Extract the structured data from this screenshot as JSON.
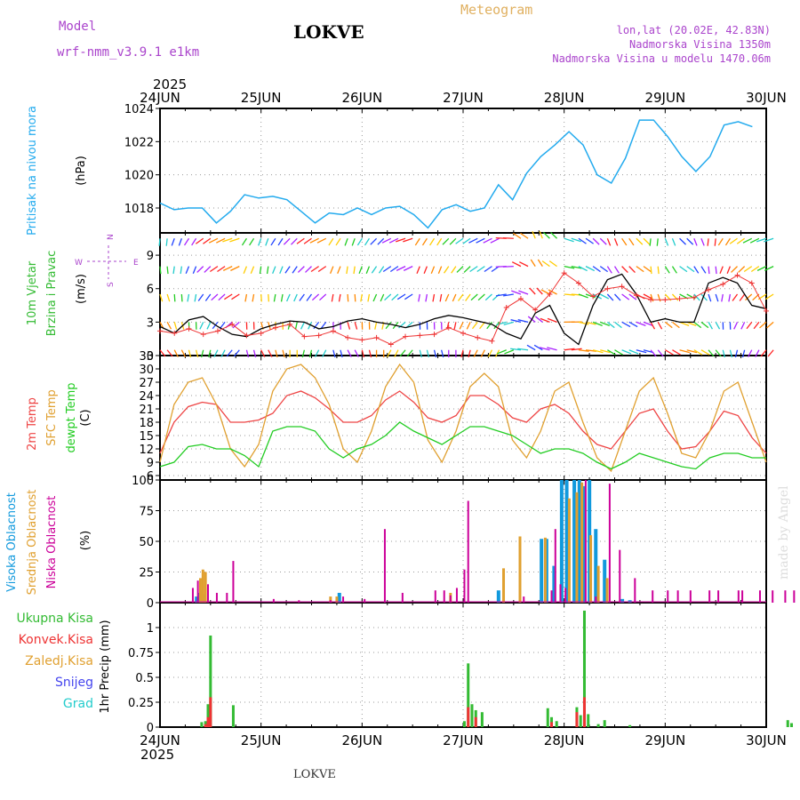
{
  "header": {
    "model_label": "Model",
    "model_name": "wrf-nmm_v3.9.1 e1km",
    "station": "LOKVE",
    "product": "Meteogram",
    "lonlat": "lon,lat (20.02E, 42.83N)",
    "altitude": "Nadmorska Visina 1350m",
    "model_altitude": "Nadmorska Visina u modelu 1470.06m"
  },
  "footer": {
    "station": "LOKVE",
    "credit": "made by Angel"
  },
  "colors": {
    "pressure": "#22aaee",
    "speed": "#000000",
    "gust": "#ee3333",
    "temp2m": "#ee4444",
    "sfc": "#e0a030",
    "dew": "#22cc22",
    "high_cloud": "#1199dd",
    "mid_cloud": "#e0a030",
    "low_cloud": "#cc0099",
    "rain_total": "#33bb33",
    "rain_conv": "#ee3333",
    "snow": "#4444ee",
    "grad": "#22cccc",
    "magenta": "#aa44cc"
  },
  "chart_data": [
    {
      "type": "line",
      "id": "pressure",
      "ylabel_left": "Pritisak na nivou mora",
      "unit": "(hPa)",
      "ylim": [
        1016.5,
        1024
      ],
      "yticks": [
        1018,
        1020,
        1022,
        1024
      ],
      "x_start": "2025-06-24T00",
      "x_step_hours": 3,
      "x_ticks": [
        "24JUN",
        "25JUN",
        "26JUN",
        "27JUN",
        "28JUN",
        "29JUN",
        "30JUN"
      ],
      "year": "2025",
      "grid": true,
      "series": [
        {
          "key": "slp",
          "values": [
            1018.3,
            1017.9,
            1018.0,
            1018.0,
            1017.1,
            1017.8,
            1018.8,
            1018.6,
            1018.7,
            1018.5,
            1017.8,
            1017.1,
            1017.7,
            1017.6,
            1018.0,
            1017.6,
            1018.0,
            1018.1,
            1017.6,
            1016.8,
            1017.9,
            1018.2,
            1017.8,
            1018.0,
            1019.4,
            1018.5,
            1020.1,
            1021.1,
            1021.8,
            1022.6,
            1021.8,
            1020.0,
            1019.5,
            1021.0,
            1023.3,
            1023.3,
            1022.3,
            1021.1,
            1020.2,
            1021.1,
            1023.0,
            1023.2,
            1022.9
          ]
        }
      ]
    },
    {
      "type": "line",
      "id": "wind",
      "ylabel_left": [
        "10m Vjetar",
        "Brzina i Pravac"
      ],
      "unit": "(m/s)",
      "compass": {
        "n": "N",
        "e": "E",
        "w": "W",
        "s": "S"
      },
      "ylim": [
        0,
        11
      ],
      "yticks": [
        0,
        3,
        6,
        9
      ],
      "x_start": "2025-06-24T00",
      "x_step_hours": 3,
      "grid": true,
      "series": [
        {
          "key": "speed",
          "values": [
            2.6,
            2.0,
            3.2,
            3.5,
            2.6,
            1.9,
            1.7,
            2.4,
            2.8,
            3.1,
            3.0,
            2.4,
            2.6,
            3.1,
            3.3,
            3.0,
            2.8,
            2.5,
            2.8,
            3.3,
            3.6,
            3.4,
            3.1,
            2.8,
            2.0,
            1.5,
            3.8,
            4.5,
            2.0,
            1.0,
            4.5,
            6.8,
            7.3,
            5.5,
            3.0,
            3.3,
            3.0,
            3.0,
            6.5,
            7.0,
            6.5,
            4.5,
            4.2
          ]
        },
        {
          "key": "gust",
          "values": [
            2.2,
            2.0,
            2.4,
            1.9,
            2.2,
            2.8,
            1.8,
            2.0,
            2.5,
            2.8,
            1.7,
            1.8,
            2.2,
            1.6,
            1.4,
            1.6,
            1.0,
            1.7,
            1.8,
            1.9,
            2.5,
            2.0,
            1.6,
            1.3,
            4.3,
            5.1,
            4.1,
            5.5,
            7.4,
            6.5,
            5.3,
            6.0,
            6.2,
            5.4,
            5.0,
            5.0,
            5.1,
            5.2,
            5.9,
            6.4,
            7.2,
            6.5,
            4.0
          ]
        },
        {
          "key": "dir",
          "values": [
            60,
            70,
            80,
            100,
            110,
            120,
            80,
            70,
            80,
            90,
            100,
            110,
            80,
            70,
            80,
            90,
            110,
            120,
            80,
            80,
            90,
            100,
            110,
            110,
            150,
            190,
            220,
            200,
            350,
            10,
            20,
            40,
            30,
            20,
            60,
            40,
            20,
            40,
            60,
            80,
            100,
            110,
            120
          ]
        }
      ]
    },
    {
      "type": "line",
      "id": "temperature",
      "ylabel_left": [
        "2m Temp",
        "SFC Temp",
        "dewpt Temp"
      ],
      "unit": "(C)",
      "ylim": [
        5,
        33
      ],
      "yticks": [
        6,
        9,
        12,
        15,
        18,
        21,
        24,
        27,
        30,
        33
      ],
      "x_start": "2025-06-24T00",
      "x_step_hours": 3,
      "grid": true,
      "series": [
        {
          "key": "t2m",
          "values": [
            11,
            18,
            21.5,
            22.5,
            22,
            18,
            18,
            18.5,
            20,
            24,
            25,
            23.5,
            21,
            18,
            18,
            19.5,
            23,
            25,
            22.5,
            19,
            18,
            19.5,
            24,
            24,
            22,
            19,
            18,
            21,
            22,
            20,
            16,
            13,
            12,
            16,
            20,
            21,
            16,
            12,
            12.5,
            16,
            20.5,
            19.5,
            14.5,
            11
          ]
        },
        {
          "key": "sfc",
          "values": [
            9,
            22,
            27,
            28,
            22,
            12,
            8,
            13,
            25,
            30,
            31,
            28,
            22,
            12,
            9,
            16,
            26,
            31,
            27,
            14,
            9,
            16,
            26,
            29,
            26,
            14,
            10,
            16,
            25,
            27,
            18,
            10,
            7,
            16,
            25,
            28,
            20,
            11,
            10,
            16,
            25,
            27,
            18,
            9
          ]
        },
        {
          "key": "dew",
          "values": [
            8,
            9,
            12.5,
            13,
            12,
            12,
            10.5,
            8,
            16,
            17,
            17,
            16,
            12,
            10,
            12,
            13,
            15,
            18,
            16,
            14.5,
            13,
            15,
            17,
            17,
            16,
            15,
            13,
            11,
            12,
            12,
            11,
            9,
            7.5,
            9,
            11,
            10,
            9,
            8,
            7.5,
            10,
            11,
            11,
            10,
            10
          ]
        }
      ]
    },
    {
      "type": "bar",
      "id": "cloud",
      "ylabel_left": [
        "Visoka Oblacnost",
        "Srednja Oblacnost",
        "Niska Oblacnost"
      ],
      "unit": "(%)",
      "ylim": [
        0,
        100
      ],
      "yticks": [
        0,
        25,
        50,
        75,
        100
      ],
      "x_step_hours": 3,
      "grid": true,
      "series": [
        {
          "key": "high",
          "values": [
            [
              2.9,
              5
            ],
            [
              3.1,
              8
            ],
            [
              3.3,
              10
            ],
            [
              3.5,
              7
            ],
            [
              14.2,
              8
            ],
            [
              26.8,
              10
            ],
            [
              30.2,
              52
            ],
            [
              30.6,
              52
            ],
            [
              31.2,
              30
            ],
            [
              31.8,
              100
            ],
            [
              32.2,
              100
            ],
            [
              32.8,
              100
            ],
            [
              33.2,
              100
            ],
            [
              33.6,
              95
            ],
            [
              34.0,
              100
            ],
            [
              34.5,
              60
            ],
            [
              35.2,
              35
            ],
            [
              36.6,
              3
            ],
            [
              37.2,
              2
            ]
          ]
        },
        {
          "key": "mid",
          "values": [
            [
              3.2,
              20
            ],
            [
              3.4,
              27
            ],
            [
              3.6,
              25
            ],
            [
              13.5,
              5
            ],
            [
              14.0,
              5
            ],
            [
              23.0,
              8
            ],
            [
              27.2,
              28
            ],
            [
              28.5,
              54
            ],
            [
              30.5,
              53
            ],
            [
              32.4,
              85
            ],
            [
              33.0,
              90
            ],
            [
              33.4,
              98
            ],
            [
              34.1,
              55
            ],
            [
              34.7,
              30
            ],
            [
              35.4,
              20
            ]
          ]
        },
        {
          "key": "low",
          "values": [
            [
              2.6,
              12
            ],
            [
              3.0,
              18
            ],
            [
              3.8,
              15
            ],
            [
              4.5,
              8
            ],
            [
              5.3,
              8
            ],
            [
              5.8,
              34
            ],
            [
              9.0,
              3
            ],
            [
              11.0,
              2
            ],
            [
              13.5,
              2
            ],
            [
              14.5,
              5
            ],
            [
              16.2,
              3
            ],
            [
              17.8,
              60
            ],
            [
              19.2,
              8
            ],
            [
              21.8,
              10
            ],
            [
              22.5,
              10
            ],
            [
              23.0,
              6
            ],
            [
              23.5,
              12
            ],
            [
              24.1,
              27
            ],
            [
              24.4,
              83
            ],
            [
              28.8,
              5
            ],
            [
              31.0,
              10
            ],
            [
              31.3,
              60
            ],
            [
              31.7,
              15
            ],
            [
              32.1,
              12
            ],
            [
              33.7,
              100
            ],
            [
              34.5,
              5
            ],
            [
              35.6,
              97
            ],
            [
              36.4,
              43
            ],
            [
              37.6,
              20
            ],
            [
              39.0,
              10
            ],
            [
              40.2,
              10
            ],
            [
              41.0,
              10
            ],
            [
              42.0,
              10
            ],
            [
              43.5,
              10
            ],
            [
              44.2,
              10
            ],
            [
              45.8,
              10
            ],
            [
              46.1,
              10
            ],
            [
              47.5,
              10
            ],
            [
              48.5,
              10
            ],
            [
              49.5,
              10
            ],
            [
              50.2,
              10
            ],
            [
              51.0,
              10
            ],
            [
              52.0,
              10
            ],
            [
              53.0,
              10
            ],
            [
              54.0,
              10
            ],
            [
              54.8,
              15
            ],
            [
              55.6,
              5
            ]
          ]
        }
      ]
    },
    {
      "type": "bar",
      "id": "precip",
      "ylabel_left": [
        "Ukupna Kisa",
        "Konvek.Kisa",
        "Zaledj.Kisa",
        "Snijeg",
        "Grad"
      ],
      "unit": "1hr Precip (mm)",
      "ylim": [
        0,
        1.25
      ],
      "yticks": [
        0,
        0.25,
        0.5,
        0.75,
        1
      ],
      "ytick_labels": [
        "0",
        "0.25",
        "0.5",
        "0.75",
        "1"
      ],
      "x_step_hours": 3,
      "x_ticks": [
        "24JUN",
        "25JUN",
        "26JUN",
        "27JUN",
        "28JUN",
        "29JUN",
        "30JUN"
      ],
      "year": "2025",
      "grid": true,
      "series": [
        {
          "key": "total",
          "values": [
            [
              3.3,
              0.05
            ],
            [
              3.6,
              0.06
            ],
            [
              3.8,
              0.23
            ],
            [
              4.0,
              0.92
            ],
            [
              5.8,
              0.22
            ],
            [
              24.1,
              0.06
            ],
            [
              24.4,
              0.64
            ],
            [
              24.7,
              0.23
            ],
            [
              25.0,
              0.17
            ],
            [
              25.5,
              0.15
            ],
            [
              30.7,
              0.19
            ],
            [
              31.0,
              0.1
            ],
            [
              31.4,
              0.06
            ],
            [
              33.0,
              0.2
            ],
            [
              33.3,
              0.12
            ],
            [
              33.6,
              1.17
            ],
            [
              33.9,
              0.13
            ],
            [
              34.7,
              0.03
            ],
            [
              35.2,
              0.07
            ],
            [
              37.2,
              0.02
            ],
            [
              49.7,
              0.07
            ],
            [
              50.0,
              0.04
            ]
          ]
        },
        {
          "key": "conv",
          "values": [
            [
              3.6,
              0.03
            ],
            [
              3.8,
              0.1
            ],
            [
              4.0,
              0.3
            ],
            [
              24.4,
              0.2
            ],
            [
              25.0,
              0.1
            ],
            [
              31.0,
              0.05
            ],
            [
              33.0,
              0.15
            ],
            [
              33.6,
              0.3
            ]
          ]
        }
      ]
    }
  ]
}
